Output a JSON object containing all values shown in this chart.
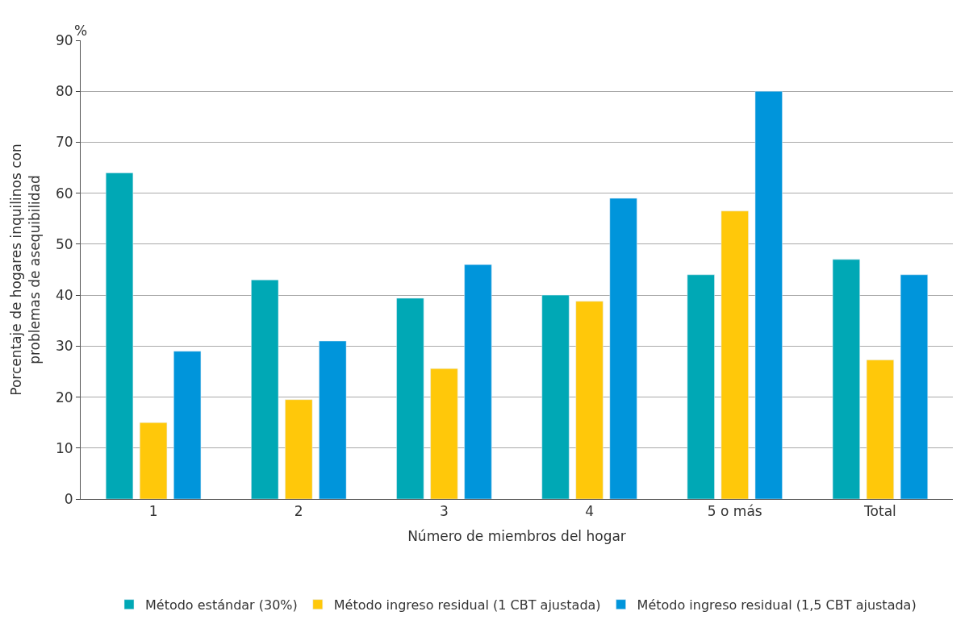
{
  "chart_data": {
    "type": "bar",
    "xlabel": "Número de miembros del hogar",
    "ylabel": "Porcentaje de hogares inquilinos con\nproblemas de asequibilidad",
    "categories": [
      "1",
      "2",
      "3",
      "4",
      "5 o más",
      "Total"
    ],
    "series": [
      {
        "name": "Método estándar (30%)",
        "color": "#00a8b5",
        "values": [
          64,
          43,
          39.4,
          40,
          44,
          47
        ]
      },
      {
        "name": "Método ingreso residual (1 CBT ajustada)",
        "color": "#ffc80a",
        "values": [
          15,
          19.5,
          25.6,
          38.8,
          56.5,
          27.3
        ]
      },
      {
        "name": "Método ingreso residual (1,5 CBT ajustada)",
        "color": "#0095db",
        "values": [
          29,
          31,
          46,
          59,
          80,
          44
        ]
      }
    ],
    "ylim": [
      0,
      90
    ],
    "yticks": [
      0,
      10,
      20,
      30,
      40,
      50,
      60,
      70,
      80,
      90
    ],
    "annotations": [
      "%"
    ],
    "grid": "y",
    "legend": "bottom"
  }
}
